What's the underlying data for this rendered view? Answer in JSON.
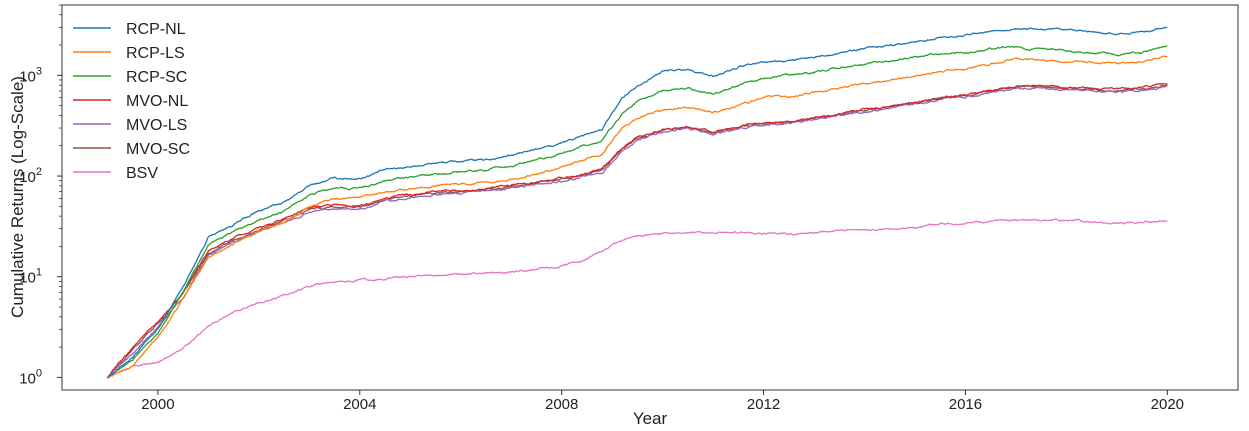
{
  "chart_data": {
    "type": "line",
    "title": "",
    "xlabel": "Year",
    "ylabel": "Cumulative Returns (Log-Scale)",
    "y_scale": "log",
    "xlim": [
      1998.1,
      2021.4
    ],
    "ylim": [
      0.75,
      5000
    ],
    "grid": false,
    "legend_position": "top-left",
    "x_ticks": [
      2000,
      2004,
      2008,
      2012,
      2016,
      2020
    ],
    "x_tick_labels": [
      "2000",
      "2004",
      "2008",
      "2012",
      "2016",
      "2020"
    ],
    "y_ticks": [
      1,
      10,
      100,
      1000
    ],
    "y_tick_labels": [
      [
        "10",
        "0"
      ],
      [
        "10",
        "1"
      ],
      [
        "10",
        "2"
      ],
      [
        "10",
        "3"
      ]
    ],
    "x": [
      1999.0,
      1999.5,
      2000.0,
      2000.5,
      2001.0,
      2001.5,
      2002.0,
      2002.5,
      2003.0,
      2003.5,
      2004.0,
      2004.5,
      2005.0,
      2005.5,
      2006.0,
      2006.5,
      2007.0,
      2007.5,
      2008.0,
      2008.5,
      2008.8,
      2009.2,
      2009.5,
      2010.0,
      2010.5,
      2011.0,
      2011.5,
      2012.0,
      2012.5,
      2013.0,
      2013.5,
      2014.0,
      2014.5,
      2015.0,
      2015.5,
      2016.0,
      2016.5,
      2017.0,
      2017.5,
      2018.0,
      2018.5,
      2019.0,
      2019.5,
      2020.0
    ],
    "series": [
      {
        "name": "RCP-NL",
        "color": "#1f77b4",
        "values": [
          1.0,
          1.6,
          3.0,
          8.0,
          25,
          33,
          45,
          55,
          80,
          95,
          95,
          115,
          125,
          135,
          140,
          145,
          160,
          185,
          210,
          260,
          290,
          600,
          800,
          1100,
          1150,
          980,
          1200,
          1350,
          1400,
          1500,
          1700,
          1850,
          2000,
          2150,
          2400,
          2500,
          2750,
          2900,
          2850,
          2800,
          2700,
          2600,
          2700,
          3000
        ]
      },
      {
        "name": "RCP-LS",
        "color": "#ff7f0e",
        "values": [
          1.0,
          1.3,
          2.5,
          6.0,
          16,
          21,
          28,
          35,
          50,
          60,
          62,
          70,
          75,
          80,
          83,
          87,
          92,
          105,
          120,
          150,
          165,
          300,
          380,
          450,
          480,
          430,
          500,
          600,
          620,
          680,
          750,
          820,
          900,
          980,
          1100,
          1150,
          1300,
          1450,
          1400,
          1350,
          1350,
          1300,
          1350,
          1550
        ]
      },
      {
        "name": "RCP-SC",
        "color": "#2ca02c",
        "values": [
          1.0,
          1.5,
          2.8,
          7.0,
          21,
          28,
          36,
          45,
          65,
          75,
          76,
          90,
          97,
          105,
          110,
          115,
          125,
          145,
          165,
          200,
          225,
          420,
          550,
          700,
          760,
          650,
          800,
          950,
          1000,
          1050,
          1200,
          1300,
          1400,
          1500,
          1650,
          1700,
          1850,
          1900,
          1800,
          1750,
          1700,
          1650,
          1700,
          1950
        ]
      },
      {
        "name": "MVO-NL",
        "color": "#d62728",
        "values": [
          1.0,
          2.0,
          3.5,
          7.0,
          18,
          24,
          30,
          38,
          48,
          52,
          50,
          60,
          65,
          70,
          72,
          75,
          80,
          88,
          95,
          108,
          118,
          190,
          240,
          290,
          310,
          280,
          310,
          340,
          350,
          380,
          420,
          460,
          500,
          540,
          600,
          640,
          710,
          780,
          790,
          760,
          750,
          730,
          760,
          830
        ]
      },
      {
        "name": "MVO-LS",
        "color": "#9467bd",
        "values": [
          1.0,
          1.7,
          3.2,
          6.3,
          16,
          22,
          28,
          34,
          44,
          48,
          47,
          56,
          60,
          65,
          67,
          70,
          75,
          82,
          88,
          100,
          108,
          175,
          225,
          275,
          295,
          260,
          295,
          320,
          335,
          365,
          400,
          440,
          480,
          520,
          580,
          610,
          680,
          740,
          750,
          720,
          700,
          680,
          710,
          780
        ]
      },
      {
        "name": "MVO-SC",
        "color": "#8c564b",
        "values": [
          1.0,
          1.9,
          3.4,
          6.8,
          17,
          23,
          29,
          36,
          46,
          50,
          49,
          58,
          63,
          68,
          70,
          73,
          78,
          86,
          93,
          105,
          115,
          185,
          235,
          285,
          305,
          270,
          305,
          335,
          345,
          375,
          410,
          450,
          490,
          530,
          590,
          630,
          700,
          760,
          770,
          740,
          730,
          710,
          740,
          810
        ]
      },
      {
        "name": "BSV",
        "color": "#e377c2",
        "values": [
          1.0,
          1.3,
          1.4,
          2.0,
          3.2,
          4.5,
          5.5,
          6.5,
          8.0,
          9.0,
          9.2,
          9.5,
          10.0,
          10.4,
          10.6,
          10.8,
          11.2,
          12.0,
          12.8,
          15.0,
          18.0,
          23.0,
          25.0,
          27.0,
          27.5,
          27.0,
          28.0,
          27.0,
          26.5,
          27.5,
          28.5,
          29.0,
          30.0,
          31.0,
          33.0,
          34.0,
          36.0,
          37.0,
          36.5,
          36.0,
          35.0,
          34.0,
          34.5,
          35.5
        ]
      }
    ]
  }
}
